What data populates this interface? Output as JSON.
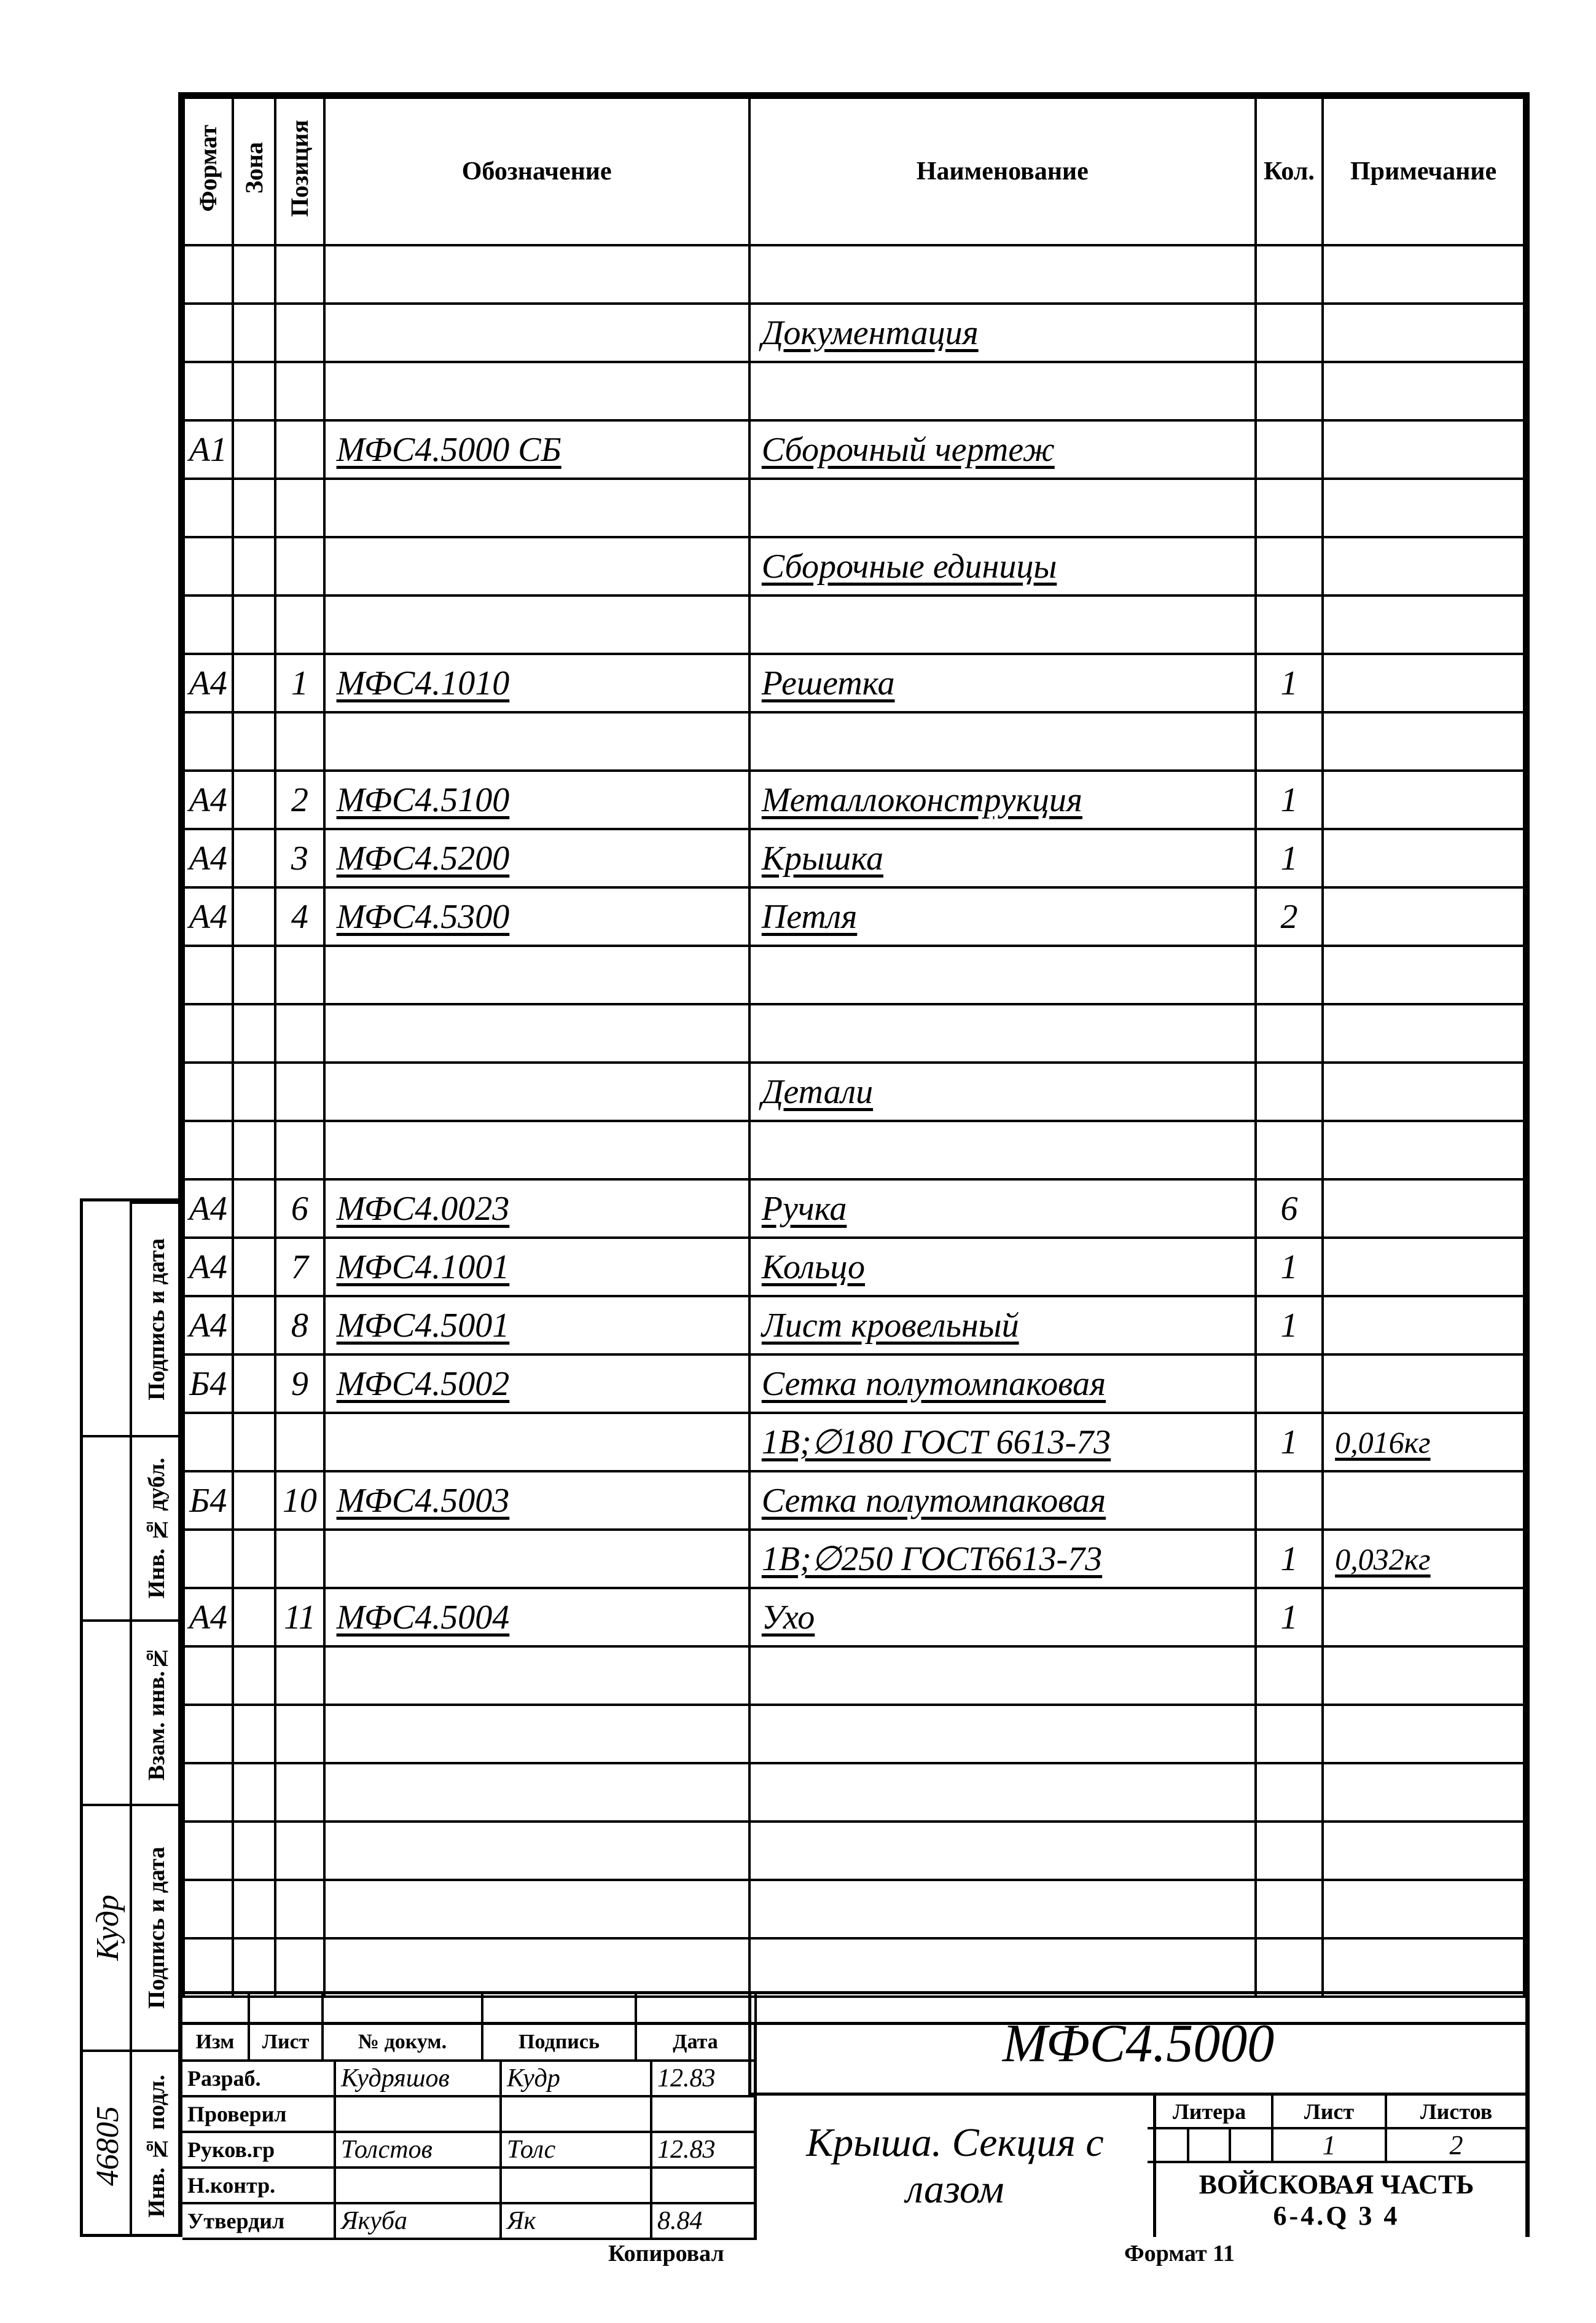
{
  "headers": {
    "format": "Формат",
    "zone": "Зона",
    "pos": "Позиция",
    "designation": "Обозначение",
    "name": "Наименование",
    "qty": "Кол.",
    "note": "Примечание"
  },
  "rows": [
    {
      "fmt": "",
      "pos": "",
      "des": "",
      "name": "",
      "qty": "",
      "note": "",
      "ul": false
    },
    {
      "fmt": "",
      "pos": "",
      "des": "",
      "name": "Документация",
      "qty": "",
      "note": "",
      "ul": true
    },
    {
      "fmt": "",
      "pos": "",
      "des": "",
      "name": "",
      "qty": "",
      "note": "",
      "ul": false
    },
    {
      "fmt": "А1",
      "pos": "",
      "des": "МФС4.5000 СБ",
      "name": "Сборочный чертеж",
      "qty": "",
      "note": "",
      "ul": true
    },
    {
      "fmt": "",
      "pos": "",
      "des": "",
      "name": "",
      "qty": "",
      "note": "",
      "ul": false
    },
    {
      "fmt": "",
      "pos": "",
      "des": "",
      "name": "Сборочные единицы",
      "qty": "",
      "note": "",
      "ul": true
    },
    {
      "fmt": "",
      "pos": "",
      "des": "",
      "name": "",
      "qty": "",
      "note": "",
      "ul": false
    },
    {
      "fmt": "А4",
      "pos": "1",
      "des": "МФС4.1010",
      "name": "Решетка",
      "qty": "1",
      "note": "",
      "ul": true
    },
    {
      "fmt": "",
      "pos": "",
      "des": "",
      "name": "",
      "qty": "",
      "note": "",
      "ul": false
    },
    {
      "fmt": "А4",
      "pos": "2",
      "des": "МФС4.5100",
      "name": "Металлоконструкция",
      "qty": "1",
      "note": "",
      "ul": true
    },
    {
      "fmt": "А4",
      "pos": "3",
      "des": "МФС4.5200",
      "name": "Крышка",
      "qty": "1",
      "note": "",
      "ul": true
    },
    {
      "fmt": "А4",
      "pos": "4",
      "des": "МФС4.5300",
      "name": "Петля",
      "qty": "2",
      "note": "",
      "ul": true
    },
    {
      "fmt": "",
      "pos": "",
      "des": "",
      "name": "",
      "qty": "",
      "note": "",
      "ul": false
    },
    {
      "fmt": "",
      "pos": "",
      "des": "",
      "name": "",
      "qty": "",
      "note": "",
      "ul": false
    },
    {
      "fmt": "",
      "pos": "",
      "des": "",
      "name": "Детали",
      "qty": "",
      "note": "",
      "ul": true
    },
    {
      "fmt": "",
      "pos": "",
      "des": "",
      "name": "",
      "qty": "",
      "note": "",
      "ul": false
    },
    {
      "fmt": "А4",
      "pos": "6",
      "des": "МФС4.0023",
      "name": "Ручка",
      "qty": "6",
      "note": "",
      "ul": true
    },
    {
      "fmt": "А4",
      "pos": "7",
      "des": "МФС4.1001",
      "name": "Кольцо",
      "qty": "1",
      "note": "",
      "ul": true
    },
    {
      "fmt": "А4",
      "pos": "8",
      "des": "МФС4.5001",
      "name": "Лист кровельный",
      "qty": "1",
      "note": "",
      "ul": true
    },
    {
      "fmt": "Б4",
      "pos": "9",
      "des": "МФС4.5002",
      "name": "Сетка полутомпаковая",
      "qty": "",
      "note": "",
      "ul": true
    },
    {
      "fmt": "",
      "pos": "",
      "des": "",
      "name": "1В;∅180 ГОСТ 6613-73",
      "qty": "1",
      "note": "0,016кг",
      "ul": true
    },
    {
      "fmt": "Б4",
      "pos": "10",
      "des": "МФС4.5003",
      "name": "Сетка полутомпаковая",
      "qty": "",
      "note": "",
      "ul": true
    },
    {
      "fmt": "",
      "pos": "",
      "des": "",
      "name": "1В;∅250 ГОСТ6613-73",
      "qty": "1",
      "note": "0,032кг",
      "ul": true
    },
    {
      "fmt": "А4",
      "pos": "11",
      "des": "МФС4.5004",
      "name": "Ухо",
      "qty": "1",
      "note": "",
      "ul": true
    },
    {
      "fmt": "",
      "pos": "",
      "des": "",
      "name": "",
      "qty": "",
      "note": "",
      "ul": false
    },
    {
      "fmt": "",
      "pos": "",
      "des": "",
      "name": "",
      "qty": "",
      "note": "",
      "ul": false
    },
    {
      "fmt": "",
      "pos": "",
      "des": "",
      "name": "",
      "qty": "",
      "note": "",
      "ul": false
    },
    {
      "fmt": "",
      "pos": "",
      "des": "",
      "name": "",
      "qty": "",
      "note": "",
      "ul": false
    },
    {
      "fmt": "",
      "pos": "",
      "des": "",
      "name": "",
      "qty": "",
      "note": "",
      "ul": false
    },
    {
      "fmt": "",
      "pos": "",
      "des": "",
      "name": "",
      "qty": "",
      "note": "",
      "ul": false
    }
  ],
  "title_block": {
    "doc_number": "МФС4.5000",
    "rev_headers": {
      "izm": "Изм",
      "list": "Лист",
      "ndoc": "№ докум.",
      "sign": "Подпись",
      "date": "Дата"
    },
    "signatures": [
      {
        "role": "Разраб.",
        "name": "Кудряшов",
        "sig": "Кудр",
        "date": "12.83"
      },
      {
        "role": "Проверил",
        "name": "",
        "sig": "",
        "date": ""
      },
      {
        "role": "Руков.гр",
        "name": "Толстов",
        "sig": "Толс",
        "date": "12.83"
      },
      {
        "role": "Н.контр.",
        "name": "",
        "sig": "",
        "date": ""
      },
      {
        "role": "Утвердил",
        "name": "Якуба",
        "sig": "Як",
        "date": "8.84"
      }
    ],
    "title": "Крыша. Секция с лазом",
    "litera_label": "Литера",
    "list_label": "Лист",
    "listov_label": "Листов",
    "list_value": "1",
    "listov_value": "2",
    "org": "ВОЙСКОВАЯ ЧАСТЬ",
    "org2": "6-4.Q 3 4"
  },
  "side_labels": {
    "s1": "Подпись и дата",
    "s2": "Инв. № дубл.",
    "s3": "Взам. инв.№",
    "s4": "Подпись и дата",
    "s5": "Инв. № подл.",
    "num": "46805",
    "sig": "Кудр"
  },
  "footer": {
    "kop": "Копировал",
    "fmt": "Формат 11"
  }
}
